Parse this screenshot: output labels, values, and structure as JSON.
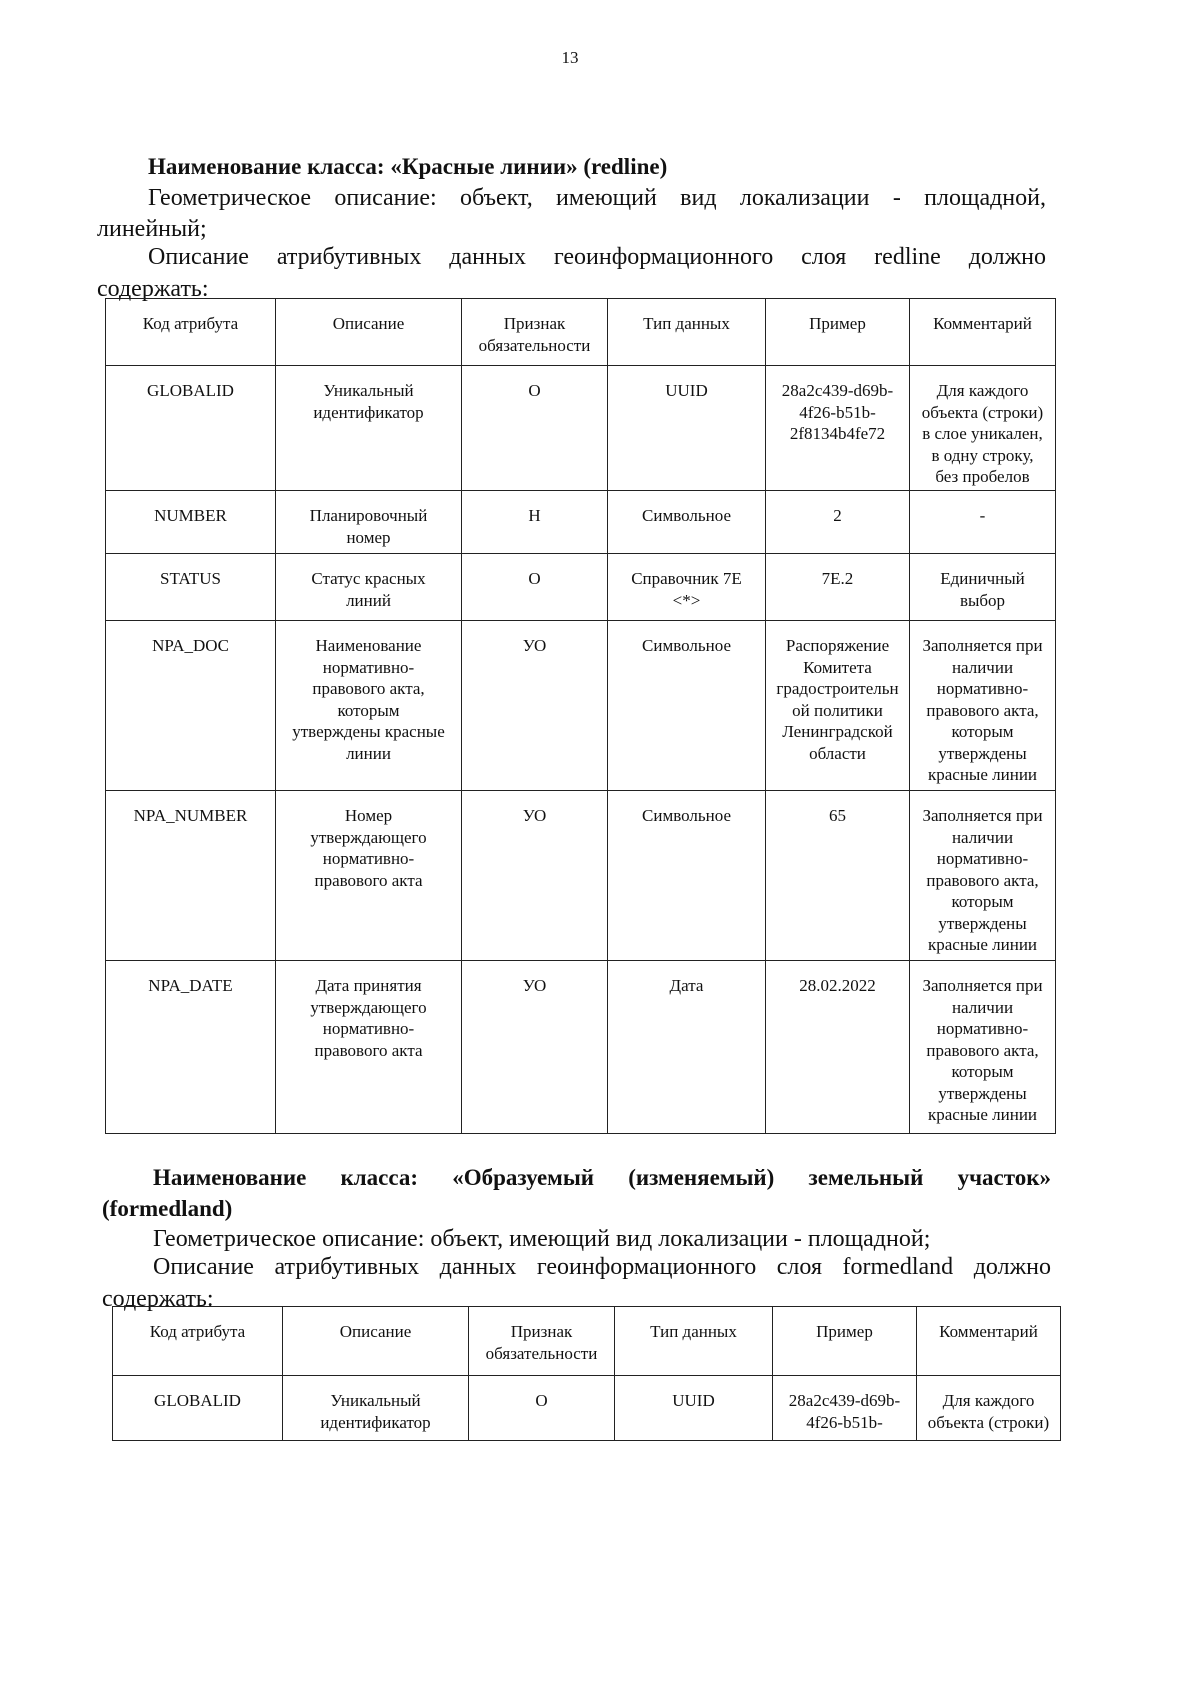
{
  "page_number": "13",
  "section1": {
    "heading": "Наименование класса: «Красные линии» (redline)",
    "geometry_line1": "Геометрическое описание: объект, имеющий вид локализации - площадной,",
    "geometry_line2": "линейный;",
    "attr_line1": "Описание атрибутивных данных геоинформационного слоя redline должно",
    "attr_line2": "содержать:",
    "table": {
      "headers": [
        "Код атрибута",
        "Описание",
        "Признак\nобязательности",
        "Тип данных",
        "Пример",
        "Комментарий"
      ],
      "rows": [
        [
          "GLOBALID",
          "Уникальный\nидентификатор",
          "О",
          "UUID",
          "28a2c439-d69b-\n4f26-b51b-\n2f8134b4fe72",
          "Для каждого\nобъекта (строки)\nв слое уникален,\nв одну строку,\nбез пробелов"
        ],
        [
          "NUMBER",
          "Планировочный\nномер",
          "Н",
          "Символьное",
          "2",
          "-"
        ],
        [
          "STATUS",
          "Статус красных\nлиний",
          "О",
          "Справочник 7Е\n<*>",
          "7Е.2",
          "Единичный\nвыбор"
        ],
        [
          "NPA_DOC",
          "Наименование\nнормативно-\nправового акта,\nкоторым\nутверждены красные\nлинии",
          "УО",
          "Символьное",
          "Распоряжение\nКомитета\nградостроительн\nой политики\nЛенинградской\nобласти",
          "Заполняется при\nналичии\nнормативно-\nправового акта,\nкоторым\nутверждены\nкрасные линии"
        ],
        [
          "NPA_NUMBER",
          "Номер\nутверждающего\nнормативно-\nправового акта",
          "УО",
          "Символьное",
          "65",
          "Заполняется при\nналичии\nнормативно-\nправового акта,\nкоторым\nутверждены\nкрасные линии"
        ],
        [
          "NPA_DATE",
          "Дата принятия\nутверждающего\nнормативно-\nправового акта",
          "УО",
          "Дата",
          "28.02.2022",
          "Заполняется при\nналичии\nнормативно-\nправового акта,\nкоторым\nутверждены\nкрасные линии"
        ]
      ]
    }
  },
  "section2": {
    "heading_line1": "Наименование класса: «Образуемый (изменяемый) земельный участок»",
    "heading_line2": "(formedland)",
    "geometry_line1": "Геометрическое описание: объект, имеющий вид локализации - площадной;",
    "attr_line1": "Описание атрибутивных данных геоинформационного слоя formedland должно",
    "attr_line2": "содержать:",
    "table": {
      "headers": [
        "Код атрибута",
        "Описание",
        "Признак\nобязательности",
        "Тип данных",
        "Пример",
        "Комментарий"
      ],
      "rows": [
        [
          "GLOBALID",
          "Уникальный\nидентификатор",
          "О",
          "UUID",
          "28a2c439-d69b-\n4f26-b51b-",
          "Для каждого\nобъекта (строки)"
        ]
      ]
    }
  }
}
